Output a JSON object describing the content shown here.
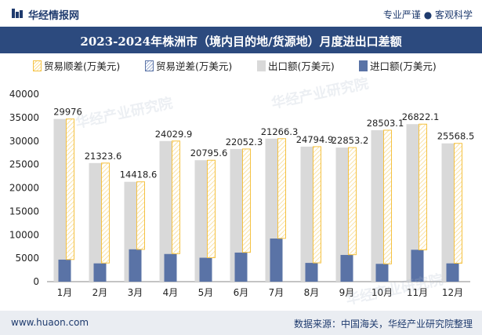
{
  "header": {
    "brand": "华经情报网",
    "slogan": "专业严谨 ● 客观科学"
  },
  "watermarks": [
    "华经产业研究院",
    "华经产业研究院",
    "华经产业研究院"
  ],
  "footer": {
    "site": "www.huaon.com",
    "source": "数据来源：中国海关，华经产业研究院整理"
  },
  "colors": {
    "surplus": "#f5c242",
    "deficit": "#5a73a6",
    "export": "#d9d9d9",
    "import": "#5a73a6",
    "title_bg": "#2c4a7e"
  },
  "chart_data": {
    "type": "bar",
    "title": "2023-2024年株洲市（境内目的地/货源地）月度进出口差额",
    "categories": [
      "1月",
      "2月",
      "3月",
      "4月",
      "5月",
      "6月",
      "7月",
      "8月",
      "9月",
      "10月",
      "11月",
      "12月"
    ],
    "series": [
      {
        "name": "贸易顺差(万美元)",
        "values": [
          29976,
          21323.6,
          14418.6,
          24029.9,
          20795.6,
          22052.3,
          21266.3,
          24794.9,
          22853.2,
          28503.1,
          26822.1,
          25568.5
        ]
      },
      {
        "name": "贸易逆差(万美元)",
        "values": [
          0,
          0,
          0,
          0,
          0,
          0,
          0,
          0,
          0,
          0,
          0,
          0
        ]
      },
      {
        "name": "出口额(万美元)",
        "values": [
          34700,
          25300,
          21300,
          30000,
          25900,
          28300,
          30500,
          28800,
          28600,
          32300,
          33600,
          29500
        ]
      },
      {
        "name": "进口额(万美元)",
        "values": [
          4700,
          3900,
          6900,
          5900,
          5100,
          6200,
          9200,
          4000,
          5700,
          3800,
          6800,
          3900
        ]
      }
    ],
    "data_labels": [
      "29976",
      "21323.6",
      "14418.6",
      "24029.9",
      "20795.6",
      "22052.3",
      "21266.3",
      "24794.9",
      "22853.2",
      "28503.1",
      "26822.1",
      "25568.5"
    ],
    "y_ticks": [
      "0",
      "5000",
      "10000",
      "15000",
      "20000",
      "25000",
      "30000",
      "35000",
      "40000"
    ],
    "ylim": [
      0,
      40000
    ],
    "xlabel": "",
    "ylabel": "",
    "grid": false,
    "legend_position": "top"
  }
}
